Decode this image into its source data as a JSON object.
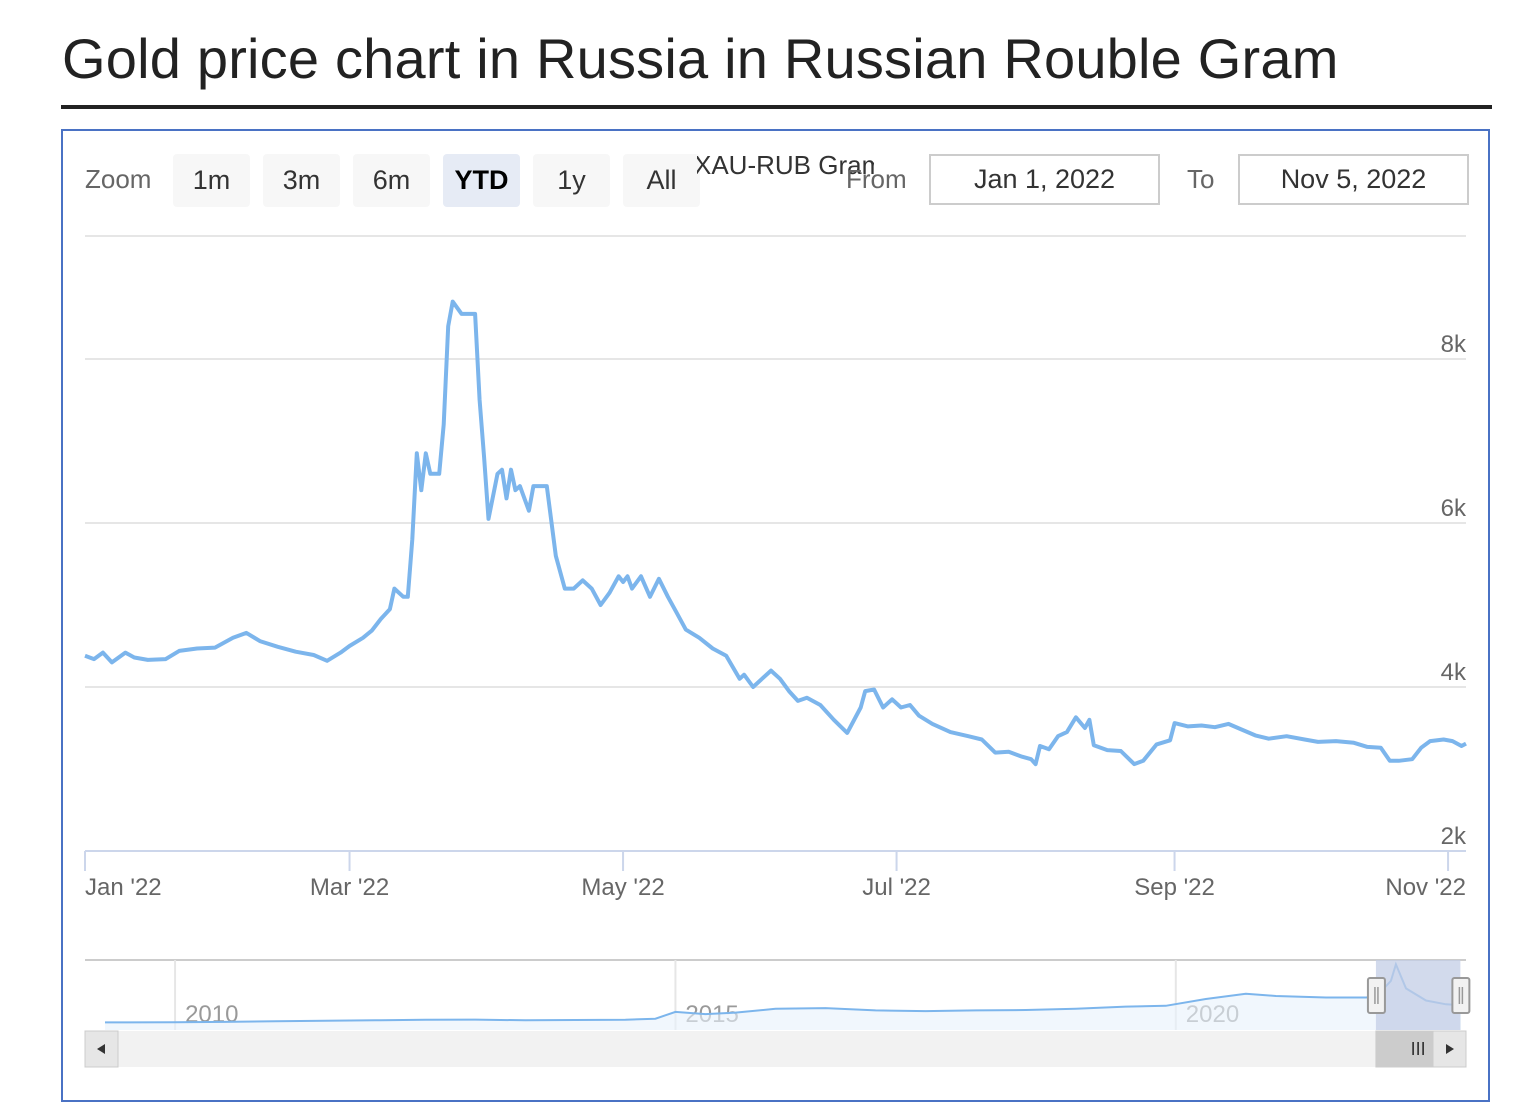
{
  "page": {
    "title": "Gold price chart in Russia in Russian Rouble Gram"
  },
  "toolbar": {
    "zoom_label": "Zoom",
    "buttons": [
      "1m",
      "3m",
      "6m",
      "YTD",
      "1y",
      "All"
    ],
    "active_button": "YTD",
    "series_caption": "XAU-RUB Gram",
    "from_label": "From",
    "from_value": "Jan 1, 2022",
    "to_label": "To",
    "to_value": "Nov 5, 2022"
  },
  "colors": {
    "line": "#7cb5ec",
    "frame": "#4a72c4",
    "grid": "#e6e6e6",
    "axis_text": "#666666",
    "navigator_mask": "#c3cde6"
  },
  "chart_data": [
    {
      "type": "line",
      "title": "",
      "series": [
        {
          "name": "XAU-RUB Gram"
        }
      ],
      "ylim": [
        2000,
        9500
      ],
      "y_ticks": [
        {
          "value": 2000,
          "label": "2k"
        },
        {
          "value": 4000,
          "label": "4k"
        },
        {
          "value": 6000,
          "label": "6k"
        },
        {
          "value": 8000,
          "label": "8k"
        }
      ],
      "x_range": [
        "2022-01-01",
        "2022-11-05"
      ],
      "x_ticks": [
        {
          "date": "2022-01-01",
          "label": "Jan '22"
        },
        {
          "date": "2022-03-01",
          "label": "Mar '22"
        },
        {
          "date": "2022-05-01",
          "label": "May '22"
        },
        {
          "date": "2022-07-01",
          "label": "Jul '22"
        },
        {
          "date": "2022-09-01",
          "label": "Sep '22"
        },
        {
          "date": "2022-11-01",
          "label": "Nov '22"
        }
      ],
      "points": [
        [
          "2022-01-01",
          4380
        ],
        [
          "2022-01-03",
          4340
        ],
        [
          "2022-01-05",
          4420
        ],
        [
          "2022-01-07",
          4300
        ],
        [
          "2022-01-10",
          4420
        ],
        [
          "2022-01-12",
          4360
        ],
        [
          "2022-01-15",
          4330
        ],
        [
          "2022-01-19",
          4340
        ],
        [
          "2022-01-22",
          4440
        ],
        [
          "2022-01-26",
          4470
        ],
        [
          "2022-01-30",
          4480
        ],
        [
          "2022-02-03",
          4600
        ],
        [
          "2022-02-06",
          4660
        ],
        [
          "2022-02-09",
          4560
        ],
        [
          "2022-02-13",
          4490
        ],
        [
          "2022-02-17",
          4430
        ],
        [
          "2022-02-21",
          4390
        ],
        [
          "2022-02-24",
          4320
        ],
        [
          "2022-02-27",
          4420
        ],
        [
          "2022-03-01",
          4500
        ],
        [
          "2022-03-04",
          4600
        ],
        [
          "2022-03-06",
          4690
        ],
        [
          "2022-03-08",
          4830
        ],
        [
          "2022-03-10",
          4950
        ],
        [
          "2022-03-11",
          5200
        ],
        [
          "2022-03-13",
          5100
        ],
        [
          "2022-03-14",
          5100
        ],
        [
          "2022-03-15",
          5800
        ],
        [
          "2022-03-16",
          6850
        ],
        [
          "2022-03-17",
          6400
        ],
        [
          "2022-03-18",
          6850
        ],
        [
          "2022-03-19",
          6600
        ],
        [
          "2022-03-21",
          6600
        ],
        [
          "2022-03-22",
          7200
        ],
        [
          "2022-03-23",
          8400
        ],
        [
          "2022-03-24",
          8700
        ],
        [
          "2022-03-26",
          8550
        ],
        [
          "2022-03-29",
          8550
        ],
        [
          "2022-03-30",
          7500
        ],
        [
          "2022-03-31",
          6800
        ],
        [
          "2022-04-01",
          6050
        ],
        [
          "2022-04-03",
          6600
        ],
        [
          "2022-04-04",
          6650
        ],
        [
          "2022-04-05",
          6300
        ],
        [
          "2022-04-06",
          6650
        ],
        [
          "2022-04-07",
          6400
        ],
        [
          "2022-04-08",
          6450
        ],
        [
          "2022-04-10",
          6150
        ],
        [
          "2022-04-11",
          6450
        ],
        [
          "2022-04-14",
          6450
        ],
        [
          "2022-04-16",
          5600
        ],
        [
          "2022-04-18",
          5200
        ],
        [
          "2022-04-20",
          5200
        ],
        [
          "2022-04-22",
          5300
        ],
        [
          "2022-04-24",
          5200
        ],
        [
          "2022-04-26",
          5000
        ],
        [
          "2022-04-28",
          5150
        ],
        [
          "2022-04-30",
          5350
        ],
        [
          "2022-05-01",
          5280
        ],
        [
          "2022-05-02",
          5350
        ],
        [
          "2022-05-03",
          5200
        ],
        [
          "2022-05-05",
          5350
        ],
        [
          "2022-05-07",
          5100
        ],
        [
          "2022-05-09",
          5320
        ],
        [
          "2022-05-11",
          5100
        ],
        [
          "2022-05-13",
          4900
        ],
        [
          "2022-05-15",
          4700
        ],
        [
          "2022-05-18",
          4600
        ],
        [
          "2022-05-21",
          4470
        ],
        [
          "2022-05-24",
          4380
        ],
        [
          "2022-05-27",
          4100
        ],
        [
          "2022-05-28",
          4150
        ],
        [
          "2022-05-30",
          4000
        ],
        [
          "2022-06-01",
          4100
        ],
        [
          "2022-06-03",
          4200
        ],
        [
          "2022-06-05",
          4100
        ],
        [
          "2022-06-07",
          3950
        ],
        [
          "2022-06-09",
          3830
        ],
        [
          "2022-06-11",
          3870
        ],
        [
          "2022-06-14",
          3780
        ],
        [
          "2022-06-17",
          3600
        ],
        [
          "2022-06-20",
          3440
        ],
        [
          "2022-06-23",
          3750
        ],
        [
          "2022-06-24",
          3950
        ],
        [
          "2022-06-26",
          3970
        ],
        [
          "2022-06-28",
          3750
        ],
        [
          "2022-06-30",
          3850
        ],
        [
          "2022-07-02",
          3750
        ],
        [
          "2022-07-04",
          3780
        ],
        [
          "2022-07-06",
          3650
        ],
        [
          "2022-07-09",
          3550
        ],
        [
          "2022-07-13",
          3450
        ],
        [
          "2022-07-17",
          3400
        ],
        [
          "2022-07-20",
          3360
        ],
        [
          "2022-07-23",
          3200
        ],
        [
          "2022-07-26",
          3210
        ],
        [
          "2022-07-29",
          3150
        ],
        [
          "2022-07-31",
          3120
        ],
        [
          "2022-08-01",
          3060
        ],
        [
          "2022-08-02",
          3280
        ],
        [
          "2022-08-04",
          3240
        ],
        [
          "2022-08-06",
          3400
        ],
        [
          "2022-08-08",
          3450
        ],
        [
          "2022-08-10",
          3630
        ],
        [
          "2022-08-12",
          3500
        ],
        [
          "2022-08-13",
          3600
        ],
        [
          "2022-08-14",
          3290
        ],
        [
          "2022-08-17",
          3230
        ],
        [
          "2022-08-20",
          3220
        ],
        [
          "2022-08-23",
          3060
        ],
        [
          "2022-08-25",
          3100
        ],
        [
          "2022-08-28",
          3300
        ],
        [
          "2022-08-31",
          3350
        ],
        [
          "2022-09-01",
          3560
        ],
        [
          "2022-09-04",
          3520
        ],
        [
          "2022-09-07",
          3530
        ],
        [
          "2022-09-10",
          3510
        ],
        [
          "2022-09-13",
          3550
        ],
        [
          "2022-09-16",
          3480
        ],
        [
          "2022-09-19",
          3410
        ],
        [
          "2022-09-22",
          3370
        ],
        [
          "2022-09-26",
          3400
        ],
        [
          "2022-09-30",
          3360
        ],
        [
          "2022-10-03",
          3330
        ],
        [
          "2022-10-07",
          3340
        ],
        [
          "2022-10-11",
          3320
        ],
        [
          "2022-10-14",
          3270
        ],
        [
          "2022-10-17",
          3260
        ],
        [
          "2022-10-19",
          3100
        ],
        [
          "2022-10-21",
          3100
        ],
        [
          "2022-10-24",
          3120
        ],
        [
          "2022-10-26",
          3260
        ],
        [
          "2022-10-28",
          3340
        ],
        [
          "2022-10-31",
          3360
        ],
        [
          "2022-11-02",
          3340
        ],
        [
          "2022-11-04",
          3280
        ],
        [
          "2022-11-05",
          3310
        ]
      ]
    },
    {
      "type": "area",
      "title": "",
      "x_ticks": [
        {
          "year": 2010,
          "label": "2010"
        },
        {
          "year": 2015,
          "label": "2015"
        },
        {
          "year": 2020,
          "label": "2020"
        }
      ],
      "x_range": [
        2009.1,
        2022.9
      ],
      "ylim": [
        0,
        9000
      ],
      "selected_range": [
        "2022-01-01",
        "2022-11-05"
      ],
      "points": [
        [
          2009.3,
          1000
        ],
        [
          2010.0,
          1020
        ],
        [
          2010.5,
          1070
        ],
        [
          2011.0,
          1150
        ],
        [
          2011.5,
          1230
        ],
        [
          2012.0,
          1280
        ],
        [
          2012.5,
          1350
        ],
        [
          2013.0,
          1370
        ],
        [
          2013.5,
          1290
        ],
        [
          2014.0,
          1330
        ],
        [
          2014.5,
          1360
        ],
        [
          2014.8,
          1500
        ],
        [
          2015.0,
          2400
        ],
        [
          2015.3,
          2100
        ],
        [
          2015.6,
          2300
        ],
        [
          2016.0,
          2800
        ],
        [
          2016.5,
          2900
        ],
        [
          2017.0,
          2600
        ],
        [
          2017.5,
          2500
        ],
        [
          2018.0,
          2600
        ],
        [
          2018.5,
          2650
        ],
        [
          2019.0,
          2800
        ],
        [
          2019.5,
          3100
        ],
        [
          2019.9,
          3200
        ],
        [
          2020.3,
          4100
        ],
        [
          2020.7,
          4800
        ],
        [
          2021.0,
          4500
        ],
        [
          2021.5,
          4300
        ],
        [
          2021.9,
          4300
        ],
        [
          2022.0,
          4400
        ],
        [
          2022.15,
          6500
        ],
        [
          2022.2,
          8700
        ],
        [
          2022.3,
          5500
        ],
        [
          2022.5,
          3900
        ],
        [
          2022.7,
          3400
        ],
        [
          2022.85,
          3300
        ]
      ]
    }
  ],
  "navigator": {
    "scrollbar_grip": "III"
  }
}
